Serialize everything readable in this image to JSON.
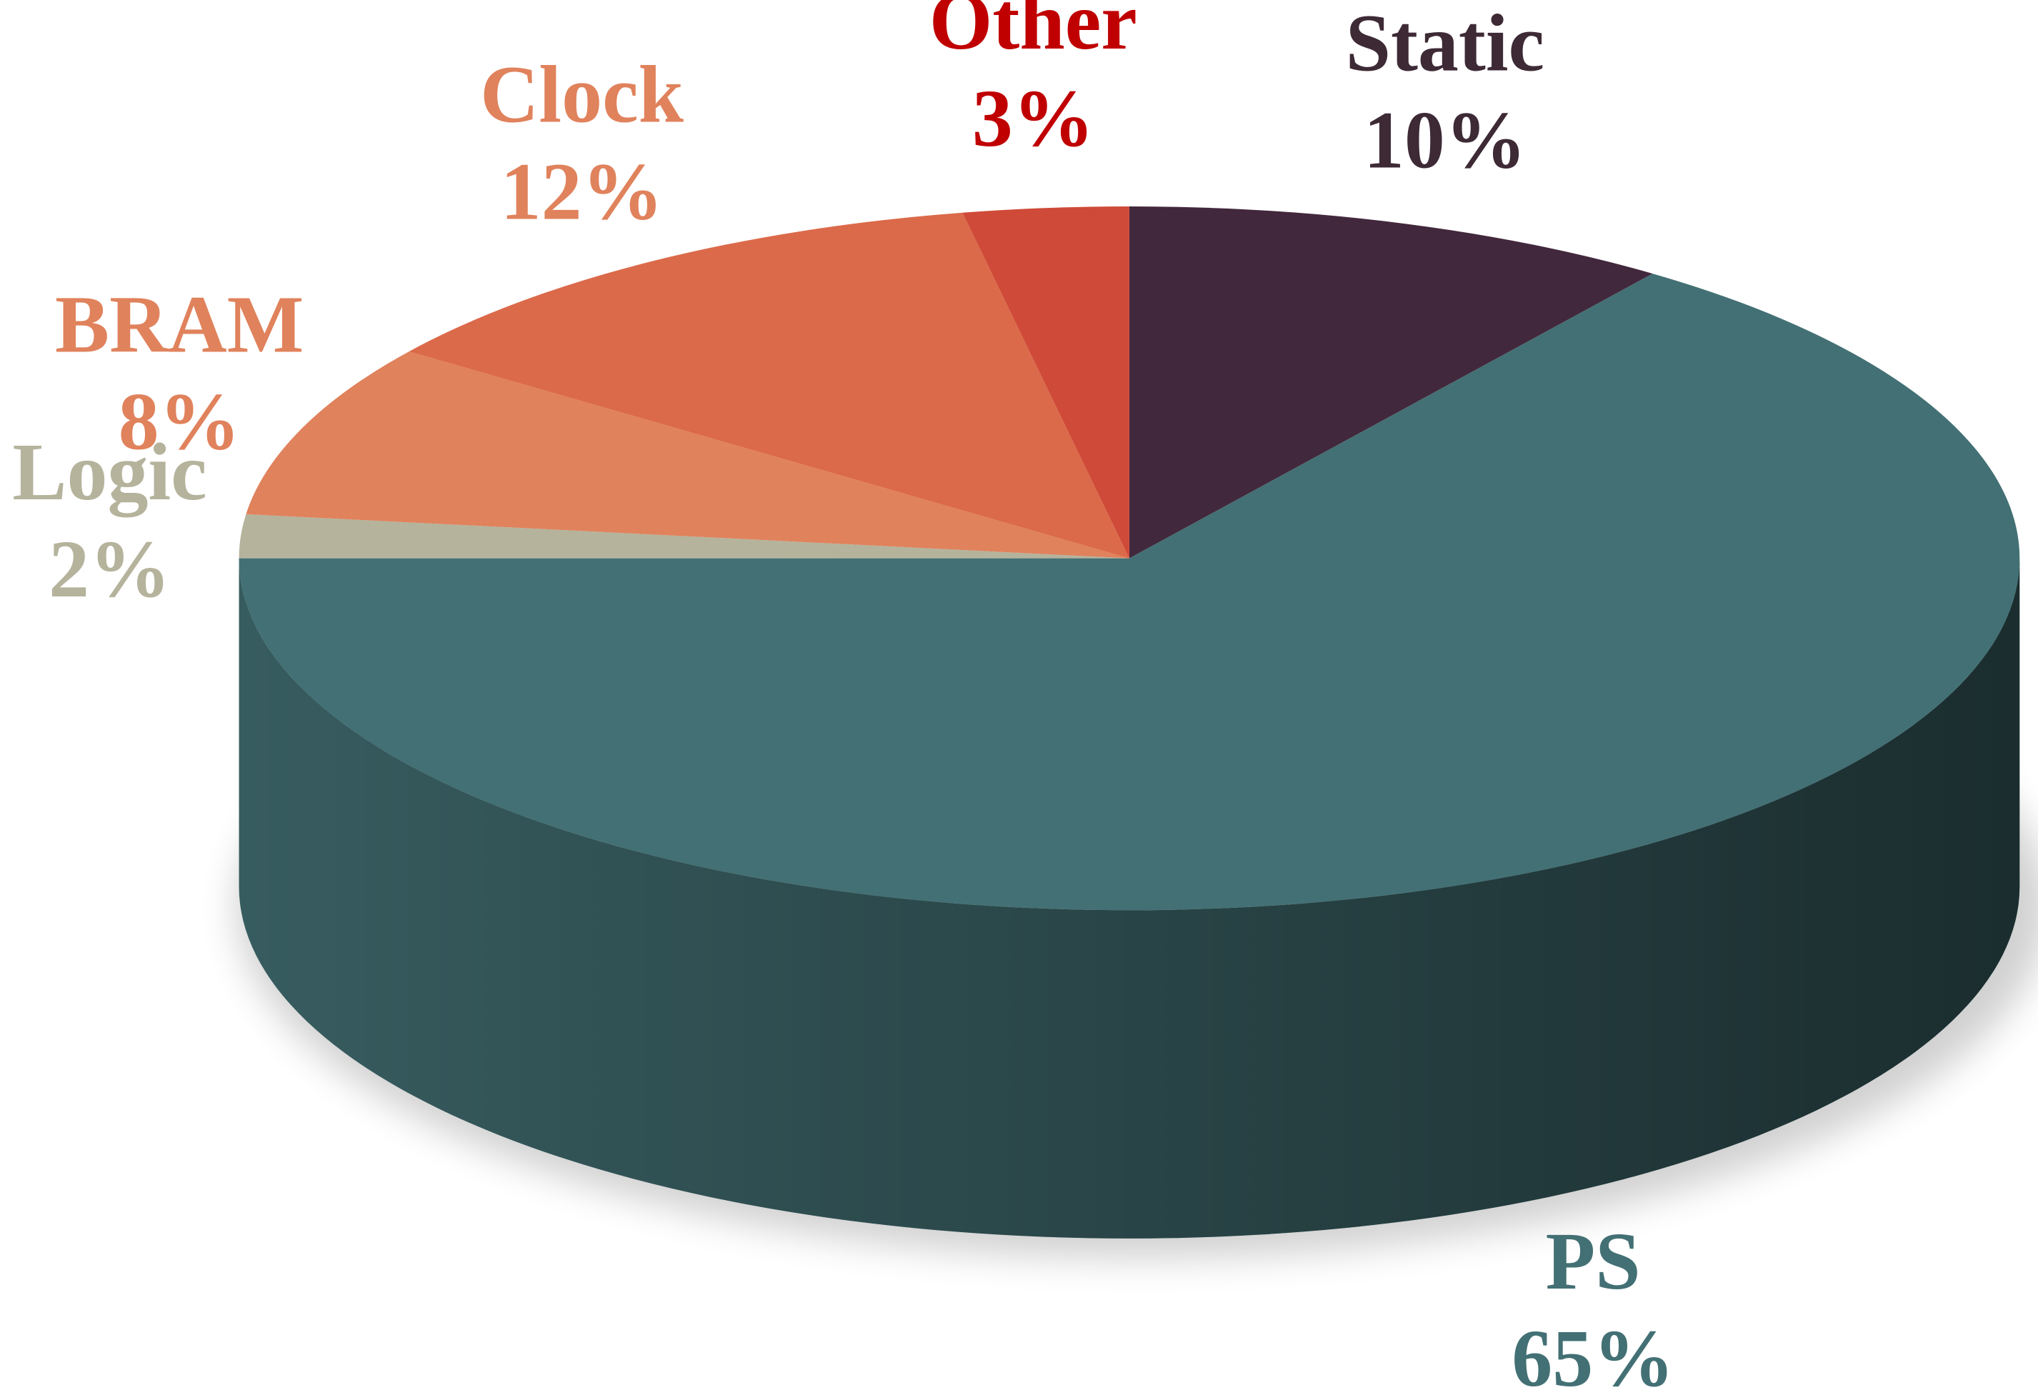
{
  "chart_data": {
    "type": "pie3d",
    "categories": [
      "Static",
      "PS",
      "Logic",
      "BRAM",
      "Clock",
      "Other"
    ],
    "values": [
      10,
      65,
      2,
      8,
      12,
      3
    ],
    "value_labels": [
      "10%",
      "65%",
      "2%",
      "8%",
      "12%",
      "3%"
    ],
    "colors": [
      "#42283c",
      "#437074",
      "#b5b39c",
      "#e0825c",
      "#db6a4a",
      "#cf4a38"
    ],
    "label_colors": [
      "#3d2a35",
      "#437074",
      "#b5b39c",
      "#e0825c",
      "#e0825c",
      "#c00000"
    ]
  }
}
